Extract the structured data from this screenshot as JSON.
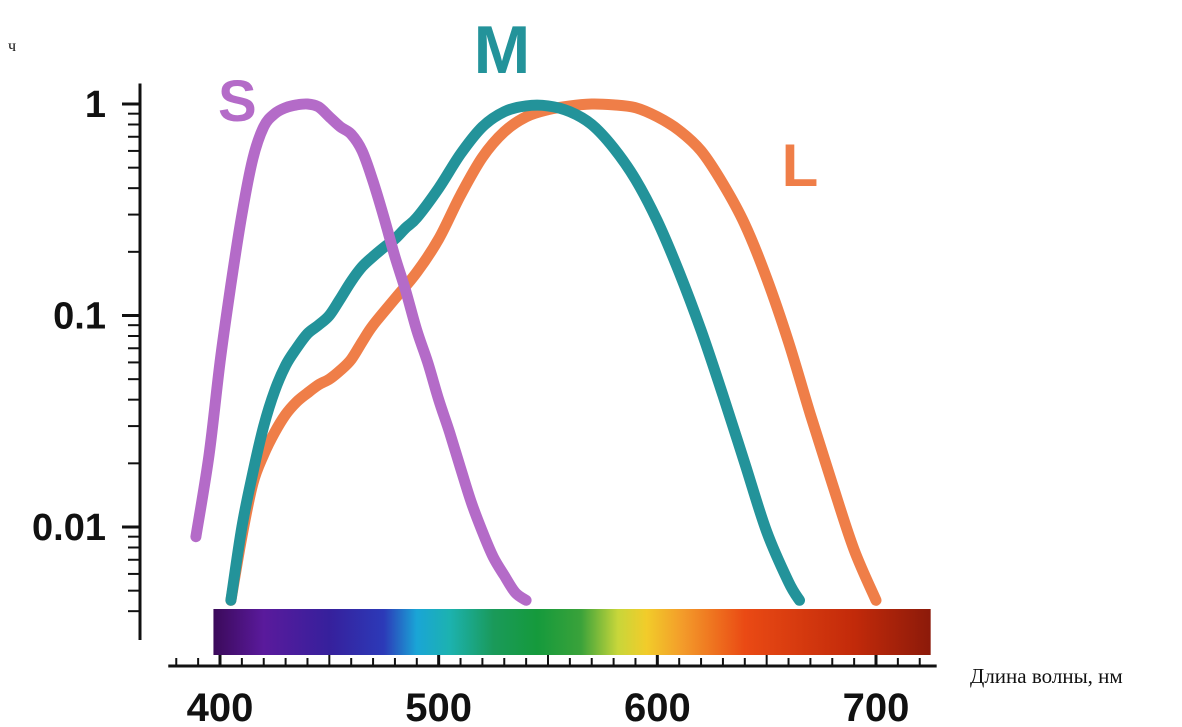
{
  "chart_data": {
    "type": "line",
    "xlabel": "Длина волны, нм",
    "ylabel": "ч",
    "y_scale": "log",
    "xlim": [
      380,
      725
    ],
    "ylim": [
      0.004,
      1.25
    ],
    "x_ticks": [
      400,
      500,
      600,
      700
    ],
    "y_ticks": [
      {
        "value": 1,
        "label": "1"
      },
      {
        "value": 0.1,
        "label": "0.1"
      },
      {
        "value": 0.01,
        "label": "0.01"
      }
    ],
    "grid": false,
    "spectrum_bar": {
      "x_range": [
        397,
        725
      ],
      "stops": [
        {
          "x": 397,
          "color": "#3b0a5a"
        },
        {
          "x": 420,
          "color": "#5a1a9c"
        },
        {
          "x": 450,
          "color": "#36209c"
        },
        {
          "x": 475,
          "color": "#2c3ab8"
        },
        {
          "x": 490,
          "color": "#1aa5d6"
        },
        {
          "x": 505,
          "color": "#1cb2b0"
        },
        {
          "x": 525,
          "color": "#1a9a5a"
        },
        {
          "x": 545,
          "color": "#159a3c"
        },
        {
          "x": 565,
          "color": "#3aa23a"
        },
        {
          "x": 582,
          "color": "#c8d63a"
        },
        {
          "x": 595,
          "color": "#f2cc2a"
        },
        {
          "x": 612,
          "color": "#f39a2a"
        },
        {
          "x": 640,
          "color": "#ea4a14"
        },
        {
          "x": 690,
          "color": "#c22a0a"
        },
        {
          "x": 725,
          "color": "#8c1a0a"
        }
      ]
    },
    "series": [
      {
        "name": "S",
        "color": "#b46bc8",
        "x": [
          389,
          395,
          400,
          405,
          410,
          415,
          420,
          425,
          430,
          435,
          440,
          445,
          450,
          455,
          460,
          465,
          470,
          475,
          480,
          485,
          490,
          495,
          500,
          505,
          510,
          515,
          520,
          525,
          530,
          535,
          540
        ],
        "y": [
          0.009,
          0.022,
          0.06,
          0.14,
          0.3,
          0.55,
          0.78,
          0.9,
          0.96,
          0.99,
          1.0,
          0.97,
          0.87,
          0.78,
          0.72,
          0.6,
          0.43,
          0.29,
          0.19,
          0.13,
          0.085,
          0.06,
          0.04,
          0.028,
          0.019,
          0.013,
          0.0095,
          0.0072,
          0.0059,
          0.0049,
          0.0045
        ]
      },
      {
        "name": "M",
        "color": "#23939a",
        "x": [
          405,
          410,
          415,
          420,
          425,
          430,
          435,
          440,
          445,
          450,
          455,
          460,
          465,
          470,
          475,
          480,
          485,
          490,
          500,
          510,
          520,
          530,
          540,
          550,
          560,
          570,
          580,
          590,
          600,
          610,
          620,
          630,
          640,
          650,
          660,
          665
        ],
        "y": [
          0.0045,
          0.01,
          0.018,
          0.03,
          0.044,
          0.058,
          0.07,
          0.082,
          0.09,
          0.1,
          0.12,
          0.145,
          0.17,
          0.19,
          0.21,
          0.23,
          0.26,
          0.29,
          0.4,
          0.58,
          0.78,
          0.92,
          0.98,
          0.98,
          0.92,
          0.8,
          0.62,
          0.44,
          0.28,
          0.16,
          0.085,
          0.042,
          0.02,
          0.0095,
          0.0055,
          0.0045
        ]
      },
      {
        "name": "L",
        "color": "#ef7e48",
        "x": [
          405,
          410,
          415,
          420,
          425,
          430,
          435,
          440,
          445,
          450,
          455,
          460,
          465,
          470,
          480,
          490,
          500,
          510,
          520,
          530,
          540,
          550,
          560,
          570,
          580,
          590,
          600,
          610,
          620,
          630,
          640,
          650,
          660,
          670,
          680,
          690,
          700
        ],
        "y": [
          0.0045,
          0.009,
          0.016,
          0.022,
          0.028,
          0.034,
          0.039,
          0.043,
          0.047,
          0.05,
          0.055,
          0.062,
          0.075,
          0.09,
          0.12,
          0.16,
          0.23,
          0.37,
          0.56,
          0.74,
          0.87,
          0.94,
          0.98,
          1.0,
          0.99,
          0.96,
          0.87,
          0.75,
          0.6,
          0.42,
          0.27,
          0.15,
          0.075,
          0.034,
          0.016,
          0.0078,
          0.0045
        ]
      }
    ]
  }
}
